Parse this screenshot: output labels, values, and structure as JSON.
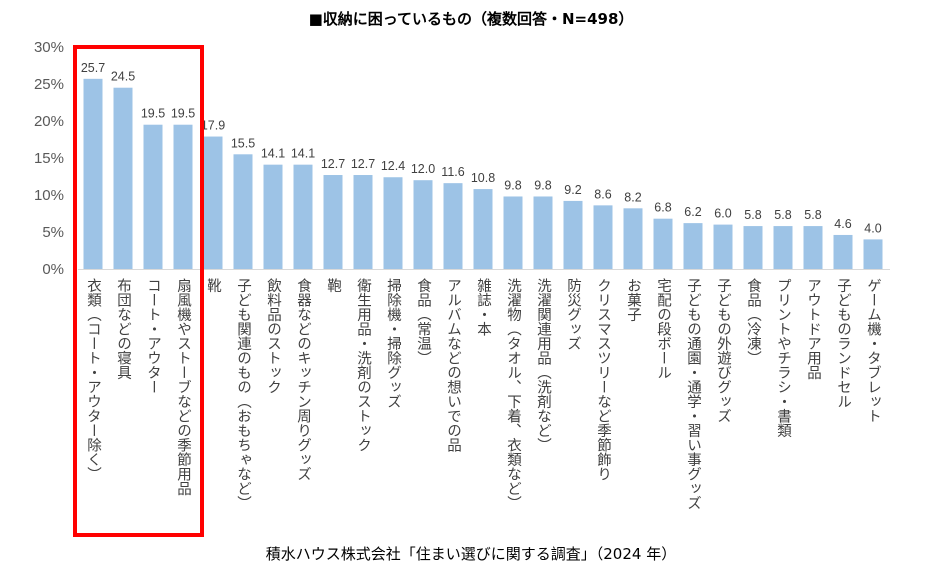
{
  "chart_data": {
    "type": "bar",
    "title": "■収納に困っているもの（複数回答・N=498）",
    "source": "積水ハウス株式会社「住まい選びに関する調査」（2024 年）",
    "xlabel": "",
    "ylabel": "",
    "ylim": [
      0,
      30
    ],
    "yticks": [
      "0%",
      "5%",
      "10%",
      "15%",
      "20%",
      "25%",
      "30%"
    ],
    "grid": false,
    "bar_color": "#9dc3e6",
    "highlight_color": "#ff0000",
    "highlighted_categories": 4,
    "categories": [
      "衣類（コート・アウター除く）",
      "布団などの寝具",
      "コート・アウター",
      "扇風機やストーブなどの季節用品",
      "靴",
      "子ども関連のもの（おもちゃなど）",
      "飲料品のストック",
      "食器などのキッチン周りグッズ",
      "鞄",
      "衛生用品・洗剤のストック",
      "掃除機・掃除グッズ",
      "食品（常温）",
      "アルバムなどの想いでの品",
      "雑誌・本",
      "洗濯物（タオル、下着、衣類など）",
      "洗濯関連用品（洗剤など）",
      "防災グッズ",
      "クリスマスツリーなど季節飾り",
      "お菓子",
      "宅配の段ボール",
      "子どもの通園・通学・習い事グッズ",
      "子どもの外遊びグッズ",
      "食品（冷凍）",
      "プリントやチラシ・書類",
      "アウトドア用品",
      "子どものランドセル",
      "ゲーム機・タブレット"
    ],
    "values": [
      25.7,
      24.5,
      19.5,
      19.5,
      17.9,
      15.5,
      14.1,
      14.1,
      12.7,
      12.7,
      12.4,
      12.0,
      11.6,
      10.8,
      9.8,
      9.8,
      9.2,
      8.6,
      8.2,
      6.8,
      6.2,
      6.0,
      5.8,
      5.8,
      5.8,
      4.6,
      4.0
    ]
  }
}
